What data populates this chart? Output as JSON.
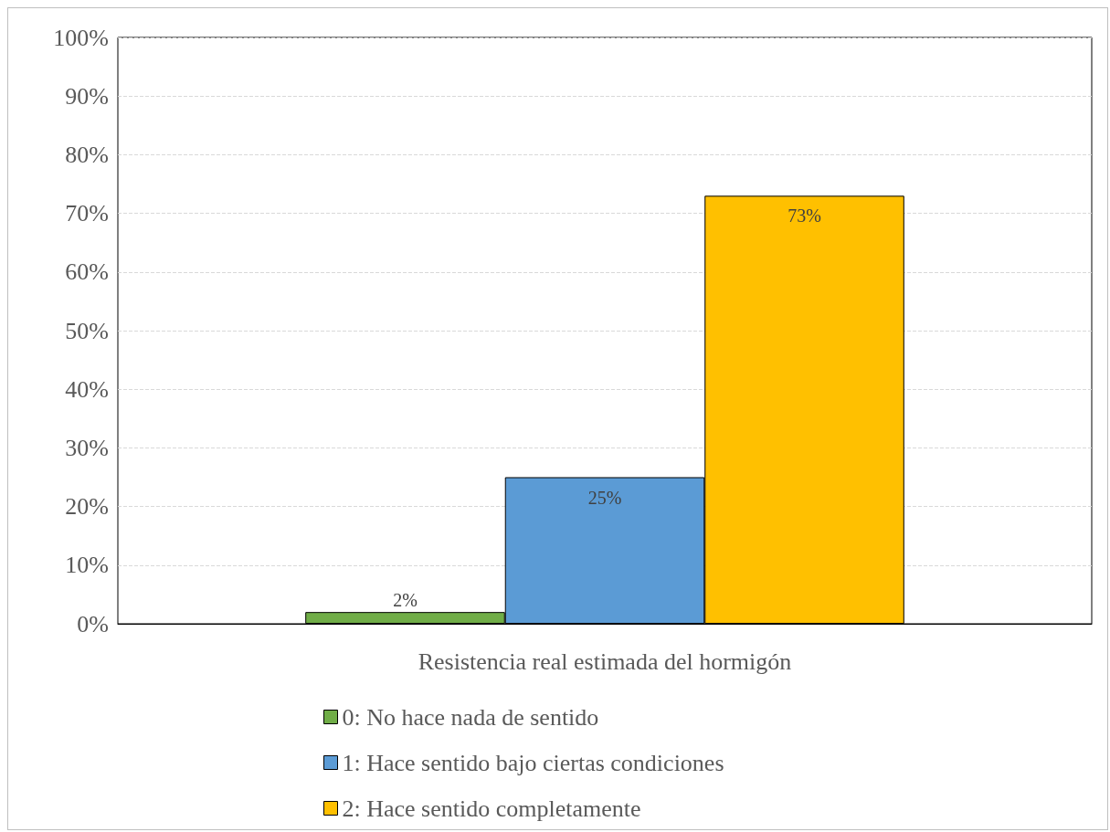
{
  "chart_data": {
    "type": "bar",
    "categories": [
      "Resistencia real estimada del hormigón"
    ],
    "series": [
      {
        "name": "0: No hace nada de sentido",
        "color": "#70ad47",
        "values": [
          2
        ],
        "value_labels": [
          "2%"
        ]
      },
      {
        "name": "1: Hace sentido bajo ciertas condiciones",
        "color": "#5b9bd5",
        "values": [
          25
        ],
        "value_labels": [
          "25%"
        ]
      },
      {
        "name": "2: Hace sentido completamente",
        "color": "#ffc000",
        "values": [
          73
        ],
        "value_labels": [
          "73%"
        ]
      }
    ],
    "ylim": [
      0,
      100
    ],
    "yticks": [
      {
        "value": 0,
        "label": "0%"
      },
      {
        "value": 10,
        "label": "10%"
      },
      {
        "value": 20,
        "label": "20%"
      },
      {
        "value": 30,
        "label": "30%"
      },
      {
        "value": 40,
        "label": "40%"
      },
      {
        "value": 50,
        "label": "50%"
      },
      {
        "value": 60,
        "label": "60%"
      },
      {
        "value": 70,
        "label": "70%"
      },
      {
        "value": 80,
        "label": "80%"
      },
      {
        "value": 90,
        "label": "90%"
      },
      {
        "value": 100,
        "label": "100%"
      }
    ],
    "grid": "y",
    "legend": "bottom"
  }
}
